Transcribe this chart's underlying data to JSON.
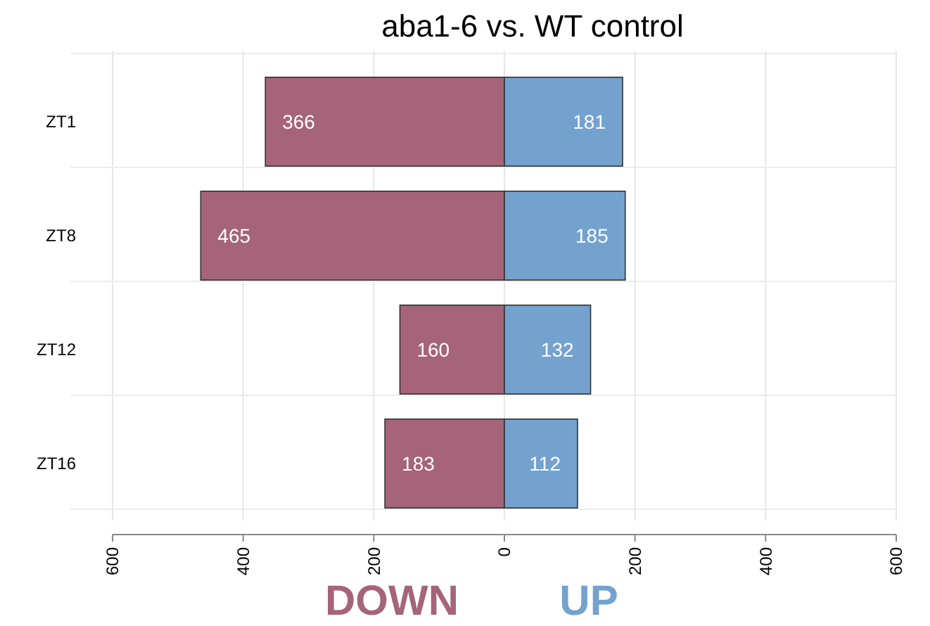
{
  "chart_data": {
    "type": "bar",
    "title": "aba1-6 vs. WT control",
    "orientation": "horizontal",
    "categories": [
      "ZT1",
      "ZT8",
      "ZT12",
      "ZT16"
    ],
    "series": [
      {
        "name": "DOWN",
        "color": "#a5647a",
        "values": [
          366,
          465,
          160,
          183
        ],
        "base": [
          -366,
          -465,
          -160,
          -183
        ]
      },
      {
        "name": "UP",
        "color": "#74a2cf",
        "values": [
          181,
          185,
          132,
          112
        ]
      }
    ],
    "xlim": [
      -600,
      600
    ],
    "xticks": [
      {
        "value": -600,
        "label": "600"
      },
      {
        "value": -400,
        "label": "400"
      },
      {
        "value": -200,
        "label": "200"
      },
      0,
      200,
      400,
      600
    ],
    "data_labels": true,
    "grid": true,
    "legend": "bottom"
  }
}
